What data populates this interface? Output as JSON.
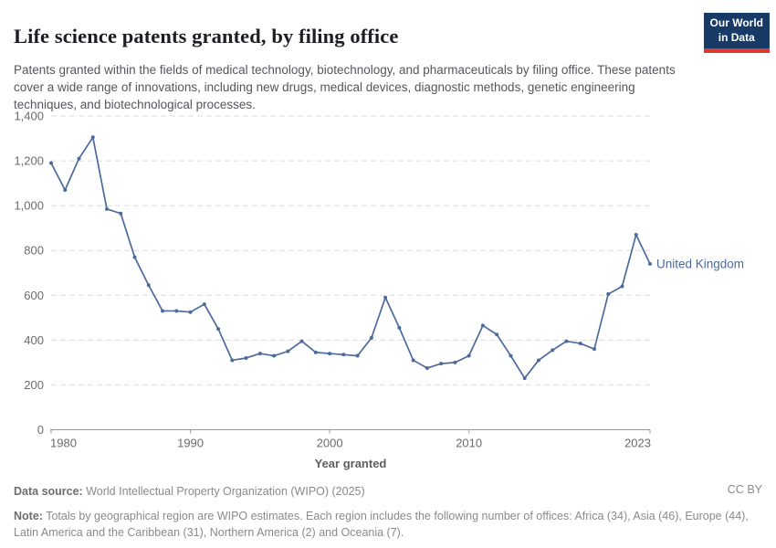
{
  "header": {
    "logo": {
      "line1": "Our World",
      "line2": "in Data"
    },
    "subtitle": "Patents granted within the fields of medical technology, biotechnology, and pharmaceuticals by filing office. These patents cover a wide range of innovations, including new drugs, medical devices, diagnostic methods, genetic engineering techniques, and biotechnological processes."
  },
  "chart_data": {
    "type": "line",
    "title": "Life science patents granted, by filing office",
    "xlabel": "Year granted",
    "ylabel": "",
    "ylim": [
      0,
      1400
    ],
    "yticks": [
      0,
      200,
      400,
      600,
      800,
      1000,
      1200,
      1400
    ],
    "xticks": [
      1980,
      1990,
      2000,
      2010,
      2023
    ],
    "grid": "horizontal-dashed",
    "legend_position": "end-of-line-label",
    "x": [
      1980,
      1981,
      1982,
      1983,
      1984,
      1985,
      1986,
      1987,
      1988,
      1989,
      1990,
      1991,
      1992,
      1993,
      1994,
      1995,
      1996,
      1997,
      1998,
      1999,
      2000,
      2001,
      2002,
      2003,
      2004,
      2005,
      2006,
      2007,
      2008,
      2009,
      2010,
      2011,
      2012,
      2013,
      2014,
      2015,
      2016,
      2017,
      2018,
      2019,
      2020,
      2021,
      2022,
      2023
    ],
    "series": [
      {
        "name": "United Kingdom",
        "color": "#4c6a9c",
        "values": [
          1190,
          1070,
          1210,
          1305,
          985,
          965,
          770,
          645,
          530,
          530,
          525,
          560,
          450,
          310,
          320,
          340,
          330,
          350,
          395,
          345,
          340,
          335,
          330,
          410,
          590,
          455,
          310,
          275,
          295,
          300,
          330,
          465,
          425,
          330,
          230,
          310,
          355,
          395,
          385,
          360,
          605,
          640,
          870,
          740
        ]
      }
    ]
  },
  "footer": {
    "data_source_label": "Data source:",
    "data_source_text": " World Intellectual Property Organization (WIPO) (2025)",
    "license": "CC BY",
    "note_label": "Note:",
    "note_text": " Totals by geographical region are WIPO estimates. Each region includes the following number of offices: Africa (34), Asia (46), Europe (44), Latin America and the Caribbean (31), Northern America (2) and Oceania (7)."
  }
}
